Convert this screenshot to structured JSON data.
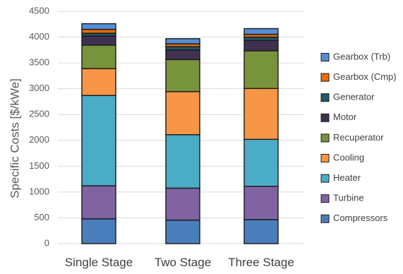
{
  "chart_data": {
    "type": "bar",
    "stacked": true,
    "categories": [
      "Single Stage",
      "Two Stage",
      "Three Stage"
    ],
    "ylabel": "Specific Costs [$/kWe]",
    "ylim": [
      0,
      4500
    ],
    "yticks": [
      0,
      500,
      1000,
      1500,
      2000,
      2500,
      3000,
      3500,
      4000,
      4500
    ],
    "grid": true,
    "legend_position": "right",
    "series": [
      {
        "name": "Compressors",
        "color": "#4a7ebb",
        "values": [
          480,
          455,
          465
        ]
      },
      {
        "name": "Turbine",
        "color": "#8064a2",
        "values": [
          640,
          620,
          645
        ]
      },
      {
        "name": "Heater",
        "color": "#4bacc6",
        "values": [
          1750,
          1035,
          910
        ]
      },
      {
        "name": "Cooling",
        "color": "#f79646",
        "values": [
          520,
          835,
          985
        ]
      },
      {
        "name": "Recuperator",
        "color": "#77933c",
        "values": [
          455,
          620,
          730
        ]
      },
      {
        "name": "Motor",
        "color": "#403152",
        "values": [
          175,
          185,
          200
        ]
      },
      {
        "name": "Generator",
        "color": "#215967",
        "values": [
          55,
          65,
          65
        ]
      },
      {
        "name": "Gearbox (Cmp)",
        "color": "#e46c0a",
        "values": [
          75,
          55,
          55
        ]
      },
      {
        "name": "Gearbox (Trb)",
        "color": "#558ed5",
        "values": [
          110,
          100,
          110
        ]
      }
    ]
  }
}
